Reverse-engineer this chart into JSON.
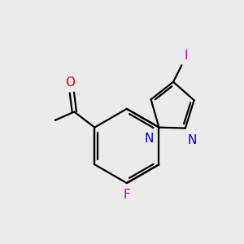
{
  "background_color": "#ebebeb",
  "bond_color": "#000000",
  "figsize": [
    3.0,
    3.0
  ],
  "dpi": 100,
  "lw": 1.6,
  "xlim": [
    0,
    10
  ],
  "ylim": [
    0,
    10
  ],
  "label_fs": 11,
  "F_color": "#cc00cc",
  "I_color": "#cc00cc",
  "N_color": "#0000ee",
  "O_color": "#dd0000"
}
